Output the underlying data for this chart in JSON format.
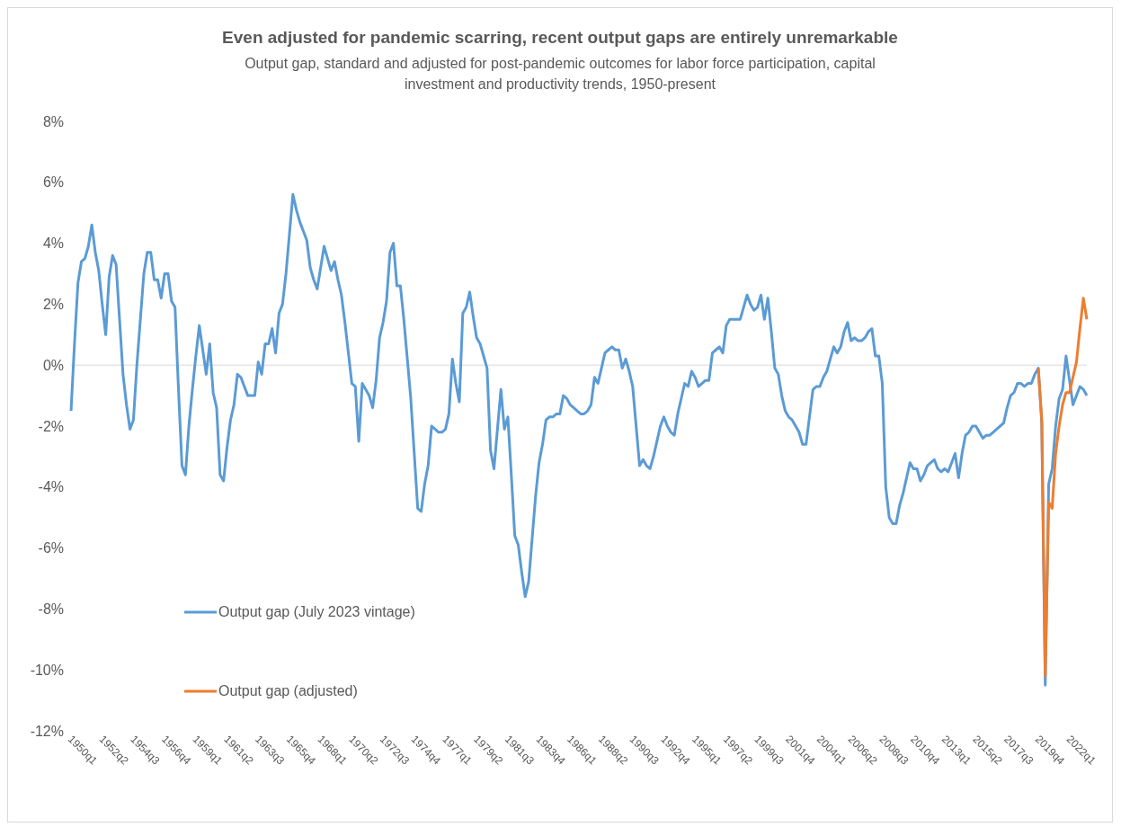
{
  "chart_data": {
    "type": "line",
    "title": "Even adjusted for pandemic scarring, recent  output gaps are entirely unremarkable",
    "subtitle": "Output gap, standard and adjusted for post-pandemic outcomes for labor force participation, capital investment and productivity trends, 1950-present",
    "categories": [
      "1950q1",
      null,
      null,
      null,
      null,
      null,
      null,
      null,
      null,
      "1952q2",
      null,
      null,
      null,
      null,
      null,
      null,
      null,
      null,
      "1954q3",
      null,
      null,
      null,
      null,
      null,
      null,
      null,
      null,
      "1956q4",
      null,
      null,
      null,
      null,
      null,
      null,
      null,
      null,
      "1959q1",
      null,
      null,
      null,
      null,
      null,
      null,
      null,
      null,
      "1961q2",
      null,
      null,
      null,
      null,
      null,
      null,
      null,
      null,
      "1963q3",
      null,
      null,
      null,
      null,
      null,
      null,
      null,
      null,
      "1965q4",
      null,
      null,
      null,
      null,
      null,
      null,
      null,
      null,
      "1968q1",
      null,
      null,
      null,
      null,
      null,
      null,
      null,
      null,
      "1970q2",
      null,
      null,
      null,
      null,
      null,
      null,
      null,
      null,
      "1972q3",
      null,
      null,
      null,
      null,
      null,
      null,
      null,
      null,
      "1974q4",
      null,
      null,
      null,
      null,
      null,
      null,
      null,
      null,
      "1977q1",
      null,
      null,
      null,
      null,
      null,
      null,
      null,
      null,
      "1979q2",
      null,
      null,
      null,
      null,
      null,
      null,
      null,
      null,
      "1981q3",
      null,
      null,
      null,
      null,
      null,
      null,
      null,
      null,
      "1983q4",
      null,
      null,
      null,
      null,
      null,
      null,
      null,
      null,
      "1986q1",
      null,
      null,
      null,
      null,
      null,
      null,
      null,
      null,
      "1988q2",
      null,
      null,
      null,
      null,
      null,
      null,
      null,
      null,
      "1990q3",
      null,
      null,
      null,
      null,
      null,
      null,
      null,
      null,
      "1992q4",
      null,
      null,
      null,
      null,
      null,
      null,
      null,
      null,
      "1995q1",
      null,
      null,
      null,
      null,
      null,
      null,
      null,
      null,
      "1997q2",
      null,
      null,
      null,
      null,
      null,
      null,
      null,
      null,
      "1999q3",
      null,
      null,
      null,
      null,
      null,
      null,
      null,
      null,
      "2001q4",
      null,
      null,
      null,
      null,
      null,
      null,
      null,
      null,
      "2004q1",
      null,
      null,
      null,
      null,
      null,
      null,
      null,
      null,
      "2006q2",
      null,
      null,
      null,
      null,
      null,
      null,
      null,
      null,
      "2008q3",
      null,
      null,
      null,
      null,
      null,
      null,
      null,
      null,
      "2010q4",
      null,
      null,
      null,
      null,
      null,
      null,
      null,
      null,
      "2013q1",
      null,
      null,
      null,
      null,
      null,
      null,
      null,
      null,
      "2015q2",
      null,
      null,
      null,
      null,
      null,
      null,
      null,
      null,
      "2017q3",
      null,
      null,
      null,
      null,
      null,
      null,
      null,
      null,
      "2019q4",
      null,
      null,
      null,
      null,
      null,
      null,
      null,
      null,
      "2022q1",
      null,
      null,
      null,
      null,
      null
    ],
    "ylim": [
      -12,
      8
    ],
    "yticks": [
      {
        "value": -12,
        "label": "-12%"
      },
      {
        "value": -10,
        "label": "-10%"
      },
      {
        "value": -8,
        "label": "-8%"
      },
      {
        "value": -6,
        "label": "-6%"
      },
      {
        "value": -4,
        "label": "-4%"
      },
      {
        "value": -2,
        "label": "-2%"
      },
      {
        "value": 0,
        "label": "0%"
      },
      {
        "value": 2,
        "label": "2%"
      },
      {
        "value": 4,
        "label": "4%"
      },
      {
        "value": 6,
        "label": "6%"
      },
      {
        "value": 8,
        "label": "8%"
      }
    ],
    "ref_lines": [
      {
        "axis": "y",
        "value": 0,
        "color": "#d9d9d9"
      }
    ],
    "grid": false,
    "legend": "bottom left",
    "marker": "none",
    "line_style": "solid",
    "series": [
      {
        "name": "Output gap (July 2023 vintage)",
        "color": "#5b9bd5",
        "values": [
          -1.5,
          0.7,
          2.7,
          3.4,
          3.5,
          3.9,
          4.6,
          3.7,
          3.1,
          2.0,
          1.0,
          2.9,
          3.6,
          3.3,
          1.5,
          -0.3,
          -1.3,
          -2.1,
          -1.8,
          0.0,
          1.5,
          3.0,
          3.7,
          3.7,
          2.8,
          2.8,
          2.2,
          3.0,
          3.0,
          2.1,
          1.9,
          -0.8,
          -3.3,
          -3.6,
          -2.0,
          -0.8,
          0.3,
          1.3,
          0.5,
          -0.3,
          0.7,
          -0.9,
          -1.4,
          -3.6,
          -3.8,
          -2.7,
          -1.8,
          -1.3,
          -0.3,
          -0.4,
          -0.7,
          -1.0,
          -1.0,
          -1.0,
          0.1,
          -0.3,
          0.7,
          0.7,
          1.2,
          0.4,
          1.7,
          2.0,
          3.0,
          4.3,
          5.6,
          5.1,
          4.7,
          4.4,
          4.1,
          3.2,
          2.8,
          2.5,
          3.2,
          3.9,
          3.5,
          3.1,
          3.4,
          2.8,
          2.3,
          1.4,
          0.4,
          -0.6,
          -0.7,
          -2.5,
          -0.6,
          -0.8,
          -1.0,
          -1.4,
          -0.5,
          0.9,
          1.4,
          2.1,
          3.7,
          4.0,
          2.6,
          2.6,
          1.5,
          0.2,
          -1.1,
          -2.9,
          -4.7,
          -4.8,
          -3.9,
          -3.3,
          -2.0,
          -2.1,
          -2.2,
          -2.2,
          -2.1,
          -1.6,
          0.2,
          -0.6,
          -1.2,
          1.7,
          1.9,
          2.4,
          1.6,
          0.9,
          0.7,
          0.3,
          -0.1,
          -2.8,
          -3.4,
          -2.1,
          -0.8,
          -2.1,
          -1.7,
          -3.6,
          -5.6,
          -5.9,
          -6.8,
          -7.6,
          -7.1,
          -5.7,
          -4.3,
          -3.2,
          -2.6,
          -1.8,
          -1.7,
          -1.7,
          -1.6,
          -1.6,
          -1.0,
          -1.1,
          -1.3,
          -1.4,
          -1.5,
          -1.6,
          -1.6,
          -1.5,
          -1.3,
          -0.4,
          -0.6,
          -0.1,
          0.4,
          0.5,
          0.6,
          0.5,
          0.5,
          -0.1,
          0.2,
          -0.2,
          -0.7,
          -2.0,
          -3.3,
          -3.1,
          -3.3,
          -3.4,
          -3.0,
          -2.5,
          -2.0,
          -1.7,
          -2.0,
          -2.2,
          -2.3,
          -1.6,
          -1.1,
          -0.6,
          -0.7,
          -0.2,
          -0.4,
          -0.7,
          -0.6,
          -0.5,
          -0.5,
          0.4,
          0.5,
          0.6,
          0.4,
          1.3,
          1.5,
          1.5,
          1.5,
          1.5,
          1.9,
          2.3,
          2.0,
          1.8,
          1.9,
          2.3,
          1.5,
          2.2,
          1.1,
          -0.1,
          -0.3,
          -1.0,
          -1.5,
          -1.7,
          -1.8,
          -2.0,
          -2.2,
          -2.6,
          -2.6,
          -1.7,
          -0.8,
          -0.7,
          -0.7,
          -0.4,
          -0.2,
          0.2,
          0.6,
          0.4,
          0.6,
          1.1,
          1.4,
          0.8,
          0.9,
          0.8,
          0.8,
          0.9,
          1.1,
          1.2,
          0.3,
          0.3,
          -0.6,
          -4.0,
          -5.0,
          -5.2,
          -5.2,
          -4.6,
          -4.2,
          -3.7,
          -3.2,
          -3.4,
          -3.4,
          -3.8,
          -3.6,
          -3.3,
          -3.2,
          -3.1,
          -3.4,
          -3.5,
          -3.4,
          -3.5,
          -3.2,
          -2.9,
          -3.7,
          -2.9,
          -2.3,
          -2.2,
          -2.0,
          -2.0,
          -2.2,
          -2.4,
          -2.3,
          -2.3,
          -2.2,
          -2.1,
          -2.0,
          -1.9,
          -1.4,
          -1.0,
          -0.9,
          -0.6,
          -0.6,
          -0.7,
          -0.6,
          -0.6,
          -0.3,
          -0.1,
          -1.9,
          -10.5,
          -3.9,
          -3.4,
          -2.0,
          -1.1,
          -0.8,
          0.3,
          -0.5,
          -1.3,
          -1.0,
          -0.7,
          -0.8,
          -1.0
        ]
      },
      {
        "name": "Output gap (adjusted)",
        "color": "#ed7d31",
        "values": [
          null,
          null,
          null,
          null,
          null,
          null,
          null,
          null,
          null,
          null,
          null,
          null,
          null,
          null,
          null,
          null,
          null,
          null,
          null,
          null,
          null,
          null,
          null,
          null,
          null,
          null,
          null,
          null,
          null,
          null,
          null,
          null,
          null,
          null,
          null,
          null,
          null,
          null,
          null,
          null,
          null,
          null,
          null,
          null,
          null,
          null,
          null,
          null,
          null,
          null,
          null,
          null,
          null,
          null,
          null,
          null,
          null,
          null,
          null,
          null,
          null,
          null,
          null,
          null,
          null,
          null,
          null,
          null,
          null,
          null,
          null,
          null,
          null,
          null,
          null,
          null,
          null,
          null,
          null,
          null,
          null,
          null,
          null,
          null,
          null,
          null,
          null,
          null,
          null,
          null,
          null,
          null,
          null,
          null,
          null,
          null,
          null,
          null,
          null,
          null,
          null,
          null,
          null,
          null,
          null,
          null,
          null,
          null,
          null,
          null,
          null,
          null,
          null,
          null,
          null,
          null,
          null,
          null,
          null,
          null,
          null,
          null,
          null,
          null,
          null,
          null,
          null,
          null,
          null,
          null,
          null,
          null,
          null,
          null,
          null,
          null,
          null,
          null,
          null,
          null,
          null,
          null,
          null,
          null,
          null,
          null,
          null,
          null,
          null,
          null,
          null,
          null,
          null,
          null,
          null,
          null,
          null,
          null,
          null,
          null,
          null,
          null,
          null,
          null,
          null,
          null,
          null,
          null,
          null,
          null,
          null,
          null,
          null,
          null,
          null,
          null,
          null,
          null,
          null,
          null,
          null,
          null,
          null,
          null,
          null,
          null,
          null,
          null,
          null,
          null,
          null,
          null,
          null,
          null,
          null,
          null,
          null,
          null,
          null,
          null,
          null,
          null,
          null,
          null,
          null,
          null,
          null,
          null,
          null,
          null,
          null,
          null,
          null,
          null,
          null,
          null,
          null,
          null,
          null,
          null,
          null,
          null,
          null,
          null,
          null,
          null,
          null,
          null,
          null,
          null,
          null,
          null,
          null,
          null,
          null,
          null,
          null,
          null,
          null,
          null,
          null,
          null,
          null,
          null,
          null,
          null,
          null,
          null,
          null,
          null,
          null,
          null,
          null,
          null,
          null,
          null,
          null,
          null,
          null,
          null,
          null,
          null,
          null,
          null,
          null,
          null,
          null,
          null,
          null,
          null,
          null,
          null,
          null,
          null,
          null,
          null,
          null,
          null,
          null,
          -0.1,
          -1.8,
          -10.2,
          -4.5,
          -4.7,
          -2.9,
          -2.0,
          -1.3,
          -0.9,
          -0.9,
          -0.4,
          0.1,
          1.2,
          2.2,
          1.5
        ]
      }
    ]
  }
}
